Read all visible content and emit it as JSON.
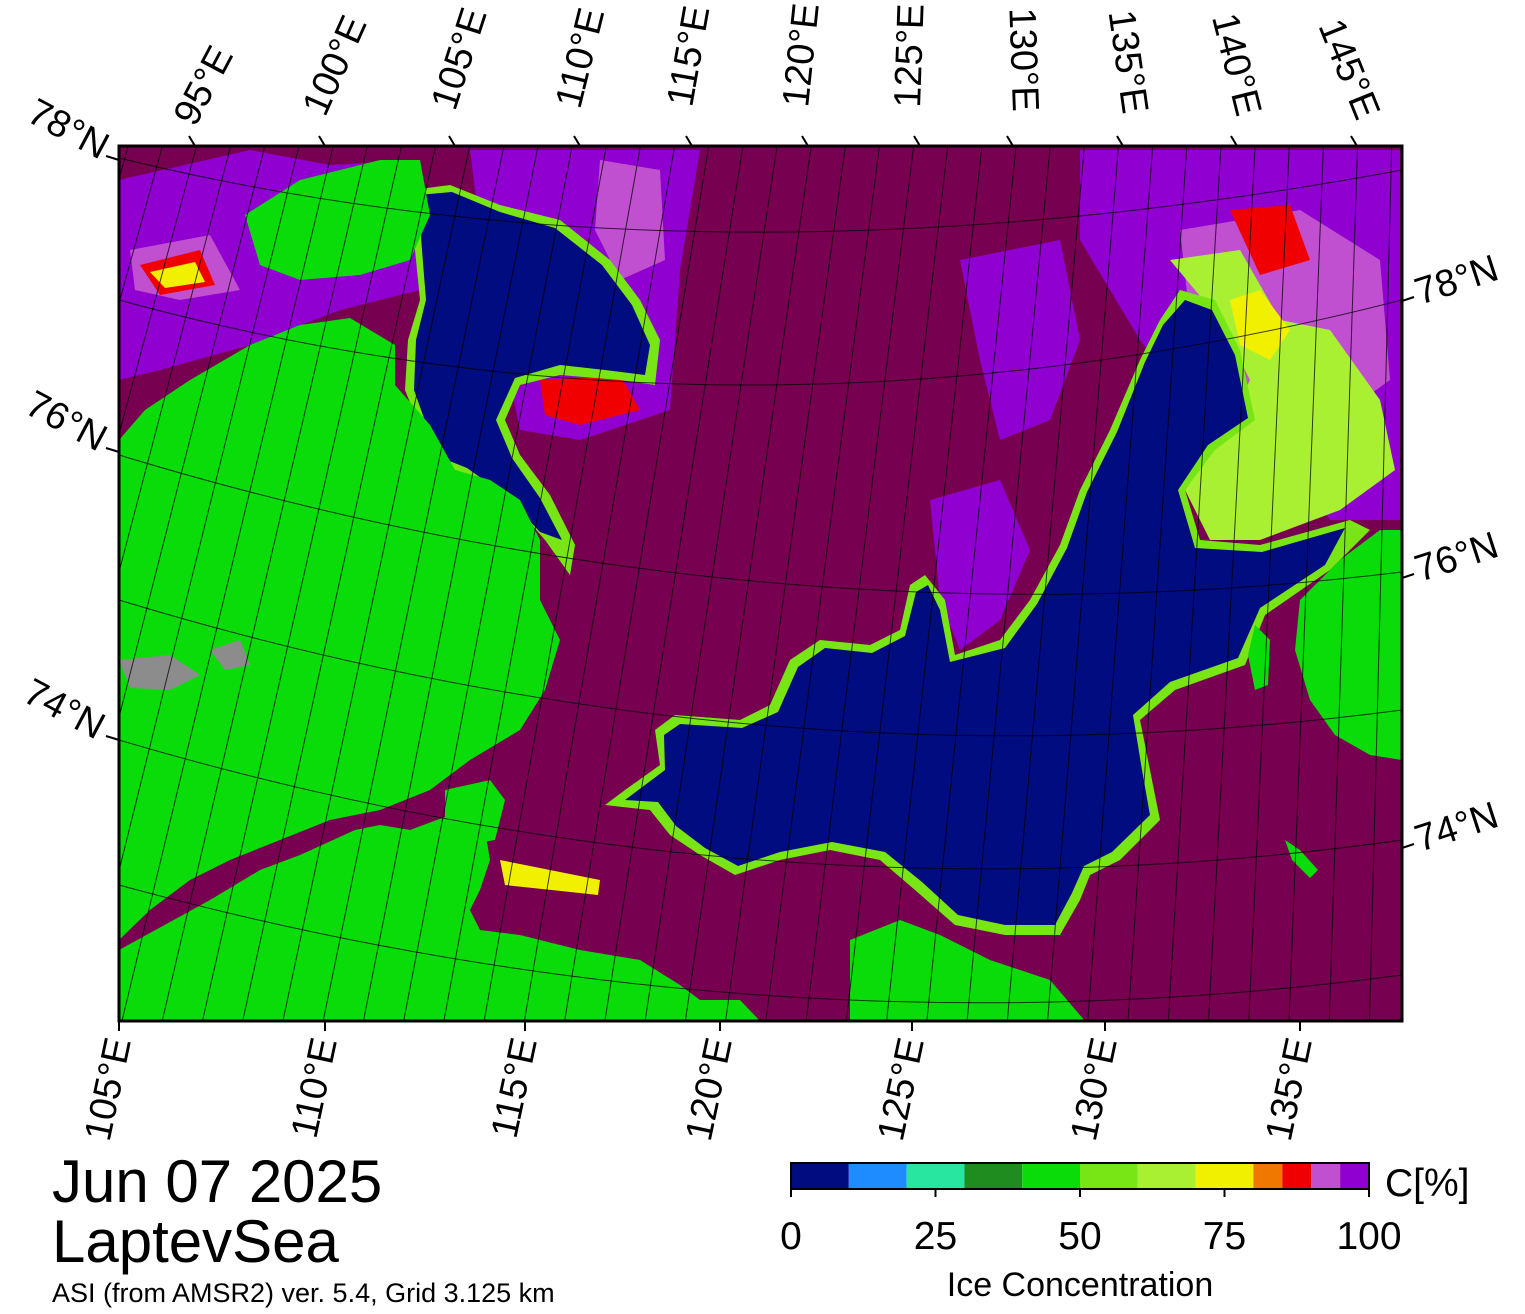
{
  "title": {
    "date": "Jun 07 2025",
    "region": "LaptevSea",
    "credit": "ASI (from AMSR2) ver. 5.4,  Grid 3.125 km"
  },
  "map": {
    "top_lon_labels": [
      "95°E",
      "100°E",
      "105°E",
      "110°E",
      "115°E",
      "120°E",
      "125°E",
      "130°E",
      "135°E",
      "140°E",
      "145°E"
    ],
    "bottom_lon_labels": [
      "105°E",
      "110°E",
      "115°E",
      "120°E",
      "125°E",
      "130°E",
      "135°E"
    ],
    "left_lat_labels": [
      "78°N",
      "76°N",
      "74°N"
    ],
    "right_lat_labels": [
      "78°N",
      "76°N",
      "74°N"
    ]
  },
  "legend": {
    "title": "Ice Concentration",
    "unit": "C[%]",
    "ticks": [
      "0",
      "25",
      "50",
      "75",
      "100"
    ],
    "bins": [
      {
        "from": 0,
        "to": 10,
        "color": "#000c80"
      },
      {
        "from": 10,
        "to": 20,
        "color": "#1e8cff"
      },
      {
        "from": 20,
        "to": 30,
        "color": "#28e6a0"
      },
      {
        "from": 30,
        "to": 40,
        "color": "#1f8c20"
      },
      {
        "from": 40,
        "to": 50,
        "color": "#0adc0a"
      },
      {
        "from": 50,
        "to": 60,
        "color": "#78e614"
      },
      {
        "from": 60,
        "to": 70,
        "color": "#aaf032"
      },
      {
        "from": 70,
        "to": 80,
        "color": "#f0f000"
      },
      {
        "from": 80,
        "to": 85,
        "color": "#f07800"
      },
      {
        "from": 85,
        "to": 90,
        "color": "#f00000"
      },
      {
        "from": 90,
        "to": 95,
        "color": "#c050d0"
      },
      {
        "from": 95,
        "to": 100,
        "color": "#9000d0"
      }
    ]
  },
  "colors": {
    "full_ice": "#780050",
    "land": "#0adc0a",
    "land_mask": "#8c8c8c",
    "open_water": "#000c80"
  }
}
